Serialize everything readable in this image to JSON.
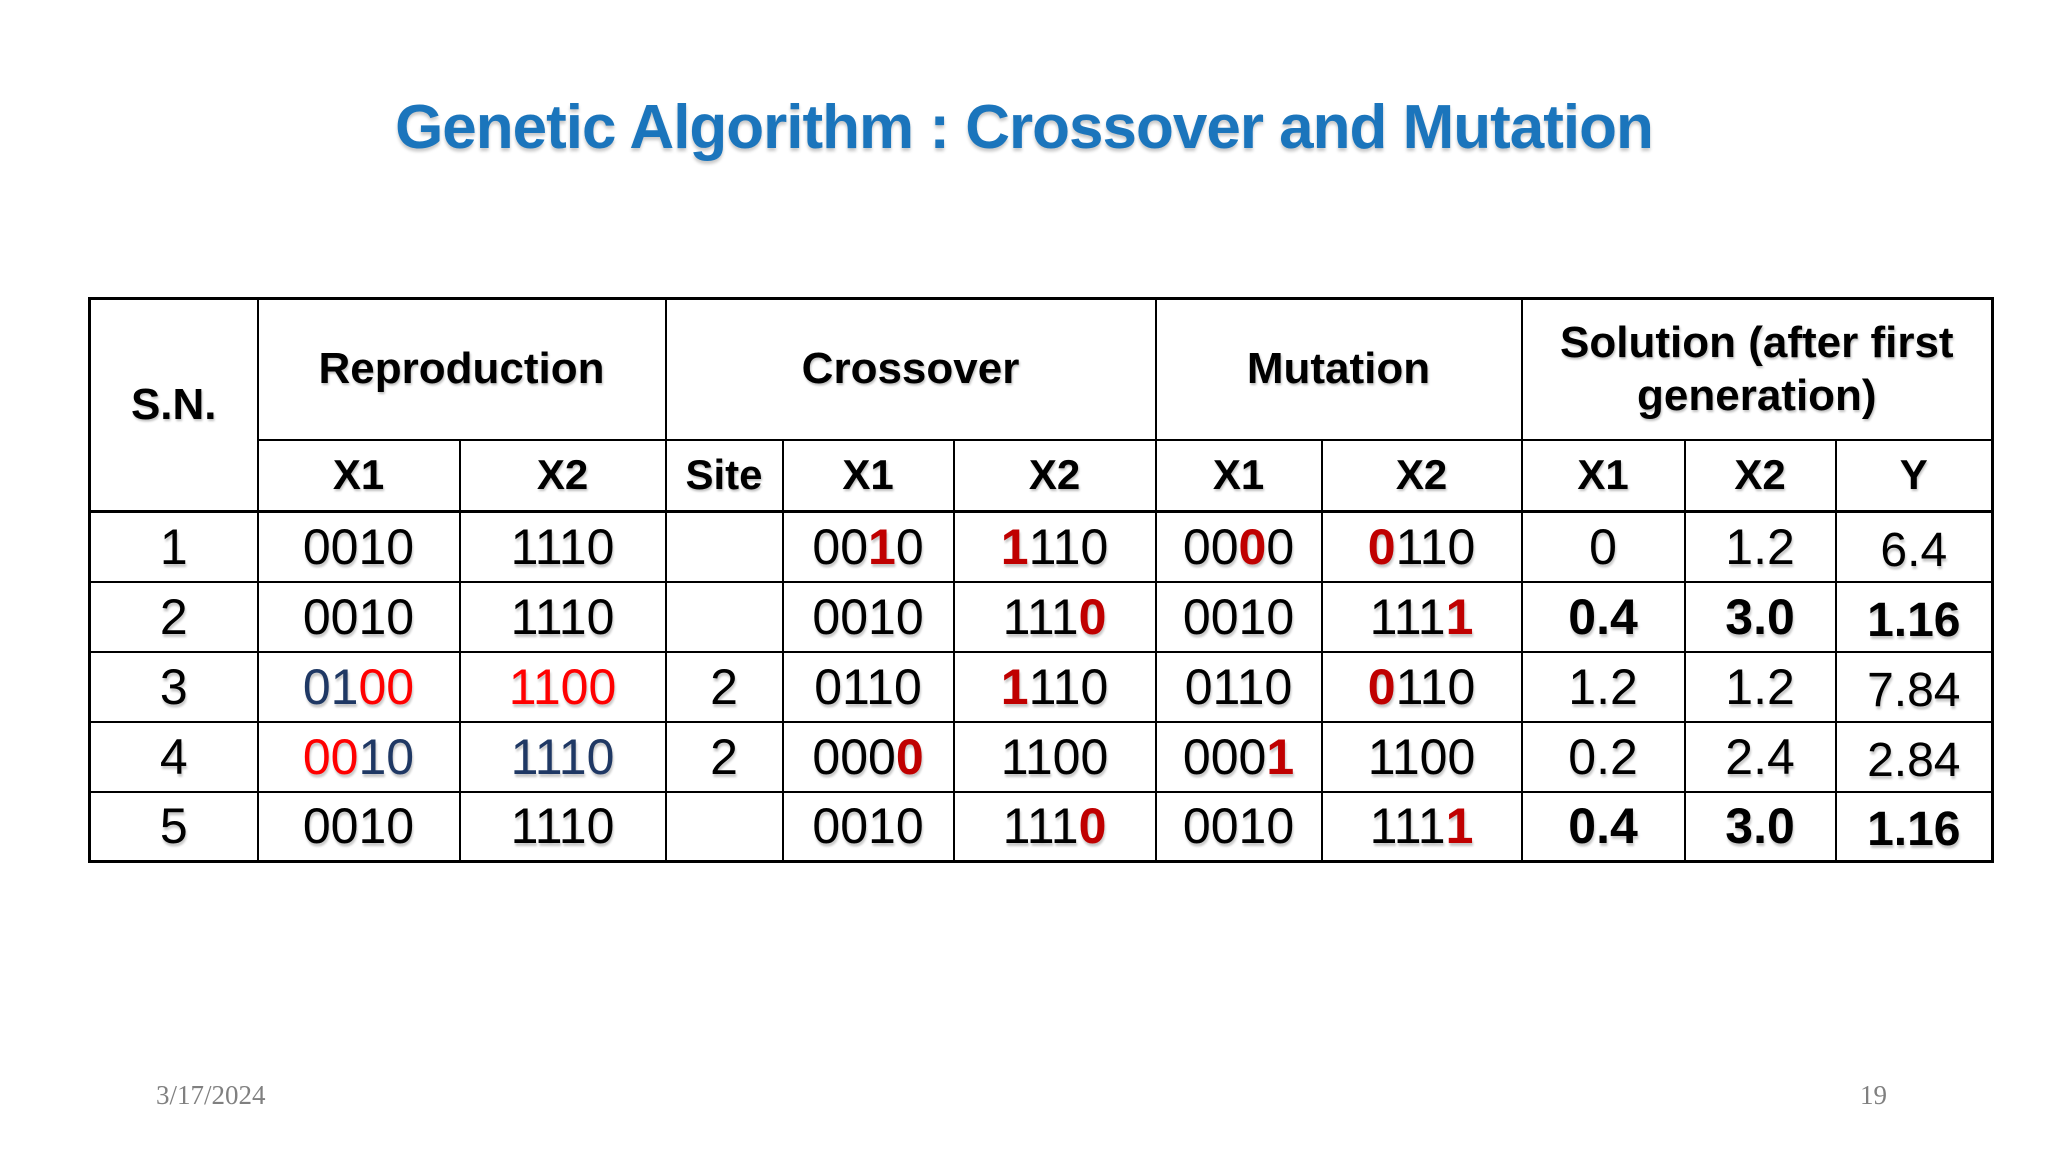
{
  "title": "Genetic Algorithm : Crossover and Mutation",
  "colors": {
    "title_blue": "#1B75BC",
    "bright_red": "#FF0000",
    "dark_red": "#C00000",
    "navy": "#1F3864",
    "black": "#000000",
    "footer_gray": "#808080"
  },
  "table": {
    "header": {
      "sn": "S.N.",
      "groups": [
        {
          "label": "Reproduction",
          "span": 2
        },
        {
          "label": "Crossover",
          "span": 3
        },
        {
          "label": "Mutation",
          "span": 2
        },
        {
          "label": "Solution (after first generation)",
          "span": 3
        }
      ],
      "subcols": [
        "X1",
        "X2",
        "Site",
        "X1",
        "X2",
        "X1",
        "X2",
        "X1",
        "X2",
        "Y"
      ]
    },
    "rows": [
      {
        "sn": "1",
        "cells": [
          [
            [
              "k",
              "0010"
            ]
          ],
          [
            [
              "k",
              "1110"
            ]
          ],
          [],
          [
            [
              "k",
              "00"
            ],
            [
              "R",
              "1"
            ],
            [
              "k",
              "0"
            ]
          ],
          [
            [
              "R",
              "1"
            ],
            [
              "k",
              "110"
            ]
          ],
          [
            [
              "k",
              "00"
            ],
            [
              "R",
              "0"
            ],
            [
              "k",
              "0"
            ]
          ],
          [
            [
              "R",
              "0"
            ],
            [
              "k",
              "110"
            ]
          ],
          [
            [
              "k",
              "0"
            ]
          ],
          [
            [
              "k",
              "1.2"
            ]
          ],
          [
            [
              "k",
              "6.4"
            ]
          ]
        ]
      },
      {
        "sn": "2",
        "cells": [
          [
            [
              "k",
              "0010"
            ]
          ],
          [
            [
              "k",
              "1110"
            ]
          ],
          [],
          [
            [
              "k",
              "0010"
            ]
          ],
          [
            [
              "k",
              "111"
            ],
            [
              "R",
              "0"
            ]
          ],
          [
            [
              "k",
              "0010"
            ]
          ],
          [
            [
              "k",
              "111"
            ],
            [
              "R",
              "1"
            ]
          ],
          [
            [
              "b",
              "0.4"
            ]
          ],
          [
            [
              "b",
              "3.0"
            ]
          ],
          [
            [
              "b",
              "1.16"
            ]
          ]
        ]
      },
      {
        "sn": "3",
        "cells": [
          [
            [
              "n",
              "01"
            ],
            [
              "r",
              "00"
            ]
          ],
          [
            [
              "r",
              "1100"
            ]
          ],
          [
            [
              "k",
              "2"
            ]
          ],
          [
            [
              "k",
              "0110"
            ]
          ],
          [
            [
              "R",
              "1"
            ],
            [
              "k",
              "110"
            ]
          ],
          [
            [
              "k",
              "0110"
            ]
          ],
          [
            [
              "R",
              "0"
            ],
            [
              "k",
              "110"
            ]
          ],
          [
            [
              "k",
              "1.2"
            ]
          ],
          [
            [
              "k",
              "1.2"
            ]
          ],
          [
            [
              "k",
              "7.84"
            ]
          ]
        ]
      },
      {
        "sn": "4",
        "cells": [
          [
            [
              "r",
              "00"
            ],
            [
              "n",
              "10"
            ]
          ],
          [
            [
              "n",
              "1110"
            ]
          ],
          [
            [
              "k",
              "2"
            ]
          ],
          [
            [
              "k",
              "000"
            ],
            [
              "R",
              "0"
            ]
          ],
          [
            [
              "k",
              "1100"
            ]
          ],
          [
            [
              "k",
              "000"
            ],
            [
              "R",
              "1"
            ]
          ],
          [
            [
              "k",
              "1100"
            ]
          ],
          [
            [
              "k",
              "0.2"
            ]
          ],
          [
            [
              "k",
              "2.4"
            ]
          ],
          [
            [
              "k",
              "2.84"
            ]
          ]
        ]
      },
      {
        "sn": "5",
        "cells": [
          [
            [
              "k",
              "0010"
            ]
          ],
          [
            [
              "k",
              "1110"
            ]
          ],
          [],
          [
            [
              "k",
              "0010"
            ]
          ],
          [
            [
              "k",
              "111"
            ],
            [
              "R",
              "0"
            ]
          ],
          [
            [
              "k",
              "0010"
            ]
          ],
          [
            [
              "k",
              "111"
            ],
            [
              "R",
              "1"
            ]
          ],
          [
            [
              "b",
              "0.4"
            ]
          ],
          [
            [
              "b",
              "3.0"
            ]
          ],
          [
            [
              "b",
              "1.16"
            ]
          ]
        ]
      }
    ]
  },
  "footer": {
    "date": "3/17/2024",
    "page": "19"
  }
}
